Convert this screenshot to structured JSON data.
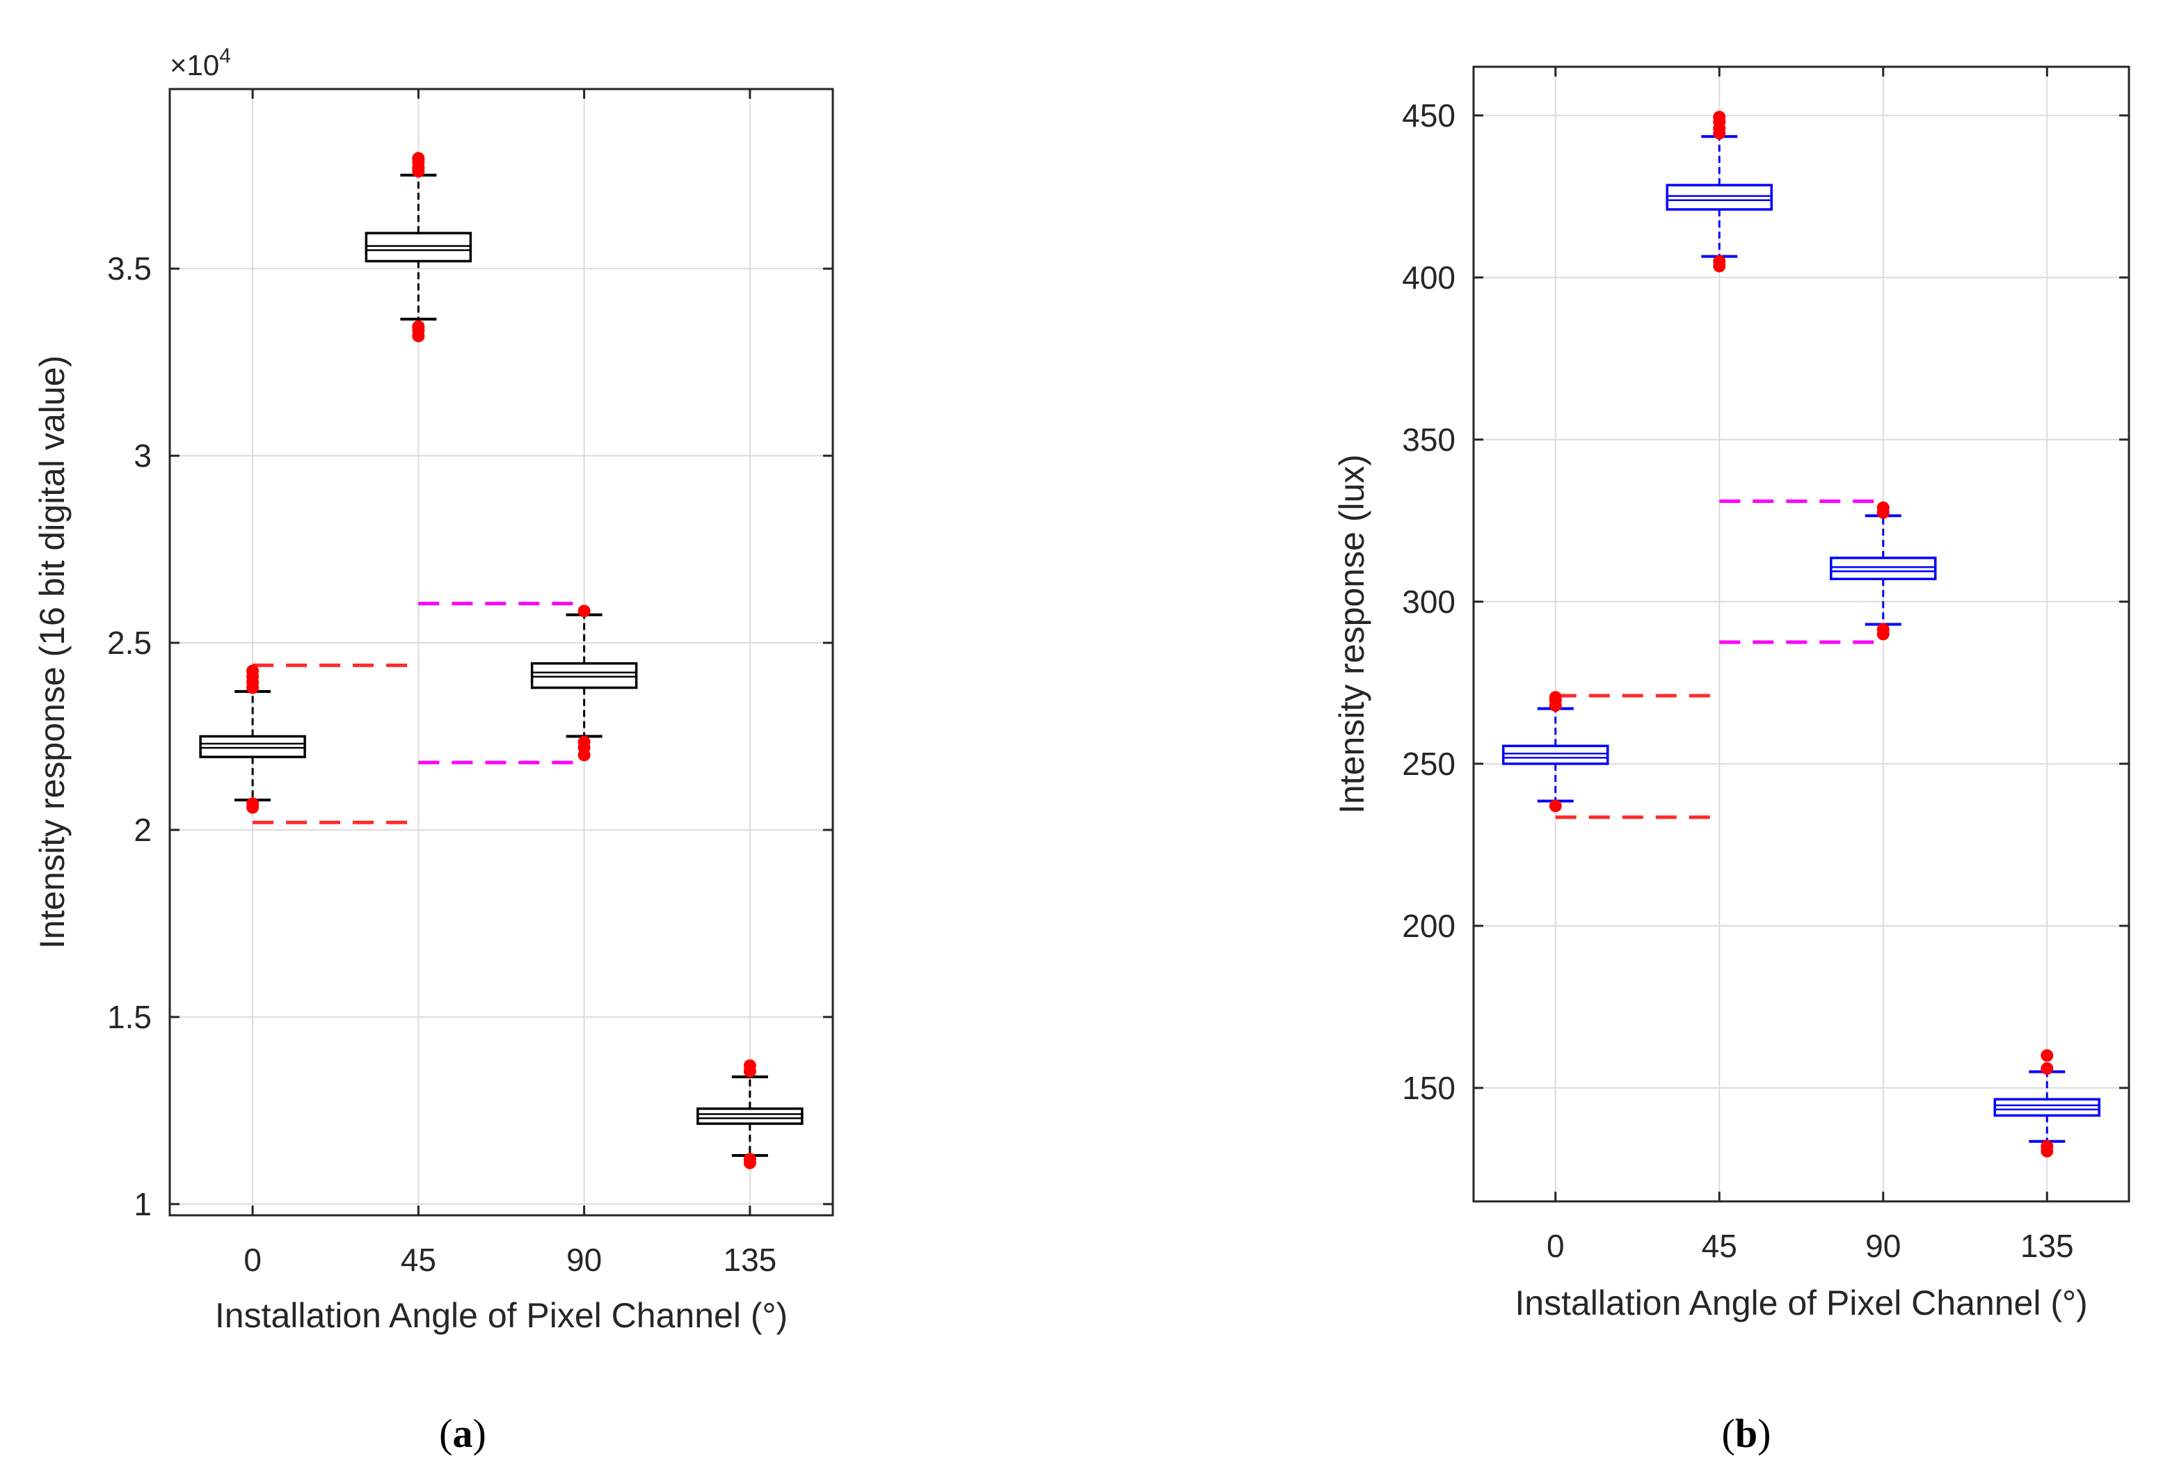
{
  "panels": [
    {
      "label": "(a)",
      "letter": "a"
    },
    {
      "label": "(b)",
      "letter": "b"
    }
  ],
  "chart_data": [
    {
      "type": "boxplot",
      "panel": "a",
      "xlabel": "Installation Angle of Pixel Channel (°)",
      "ylabel": "Intensity response (16 bit digital value)",
      "categories": [
        "0",
        "45",
        "90",
        "135"
      ],
      "ylim": [
        9700,
        39800
      ],
      "yticks": [
        10000,
        15000,
        20000,
        25000,
        30000,
        35000
      ],
      "ytick_labels": [
        "1",
        "1.5",
        "2",
        "2.5",
        "3",
        "3.5"
      ],
      "y_multiplier_base": "×10",
      "y_multiplier_exp": "4",
      "grid": true,
      "box_color": "#000000",
      "outlier_color": "#ff0000",
      "boxes": [
        {
          "category": "0",
          "q1": 21950,
          "median": 22250,
          "q3": 22500,
          "whisker_low": 20800,
          "whisker_high": 23700,
          "outliers": [
            20600,
            20700,
            23800,
            23950,
            24100,
            24250
          ]
        },
        {
          "category": "45",
          "q1": 35200,
          "median": 35550,
          "q3": 35950,
          "whisker_low": 33650,
          "whisker_high": 37500,
          "outliers": [
            33200,
            33350,
            33450,
            37600,
            37700,
            37850,
            37950
          ]
        },
        {
          "category": "90",
          "q1": 23800,
          "median": 24150,
          "q3": 24450,
          "whisker_low": 22500,
          "whisker_high": 25750,
          "outliers": [
            22000,
            22200,
            22350,
            25850
          ]
        },
        {
          "category": "135",
          "q1": 12150,
          "median": 12350,
          "q3": 12550,
          "whisker_low": 11300,
          "whisker_high": 13400,
          "outliers": [
            11100,
            11200,
            13550,
            13700
          ]
        }
      ],
      "reference_lines": [
        {
          "color": "#ff2a2a",
          "y": 24400,
          "x_from": 0,
          "x_to": 45
        },
        {
          "color": "#ff2a2a",
          "y": 20200,
          "x_from": 0,
          "x_to": 45
        },
        {
          "color": "#ff00ff",
          "y": 26050,
          "x_from": 45,
          "x_to": 90
        },
        {
          "color": "#ff00ff",
          "y": 21800,
          "x_from": 45,
          "x_to": 90
        }
      ]
    },
    {
      "type": "boxplot",
      "panel": "b",
      "xlabel": "Installation Angle of Pixel Channel (°)",
      "ylabel": "Intensity response (lux)",
      "categories": [
        "0",
        "45",
        "90",
        "135"
      ],
      "ylim": [
        115,
        465
      ],
      "yticks": [
        150,
        200,
        250,
        300,
        350,
        400,
        450
      ],
      "ytick_labels": [
        "150",
        "200",
        "250",
        "300",
        "350",
        "400",
        "450"
      ],
      "grid": true,
      "box_color": "#0000ff",
      "outlier_color": "#ff0000",
      "boxes": [
        {
          "category": "0",
          "q1": 250.0,
          "median": 252.5,
          "q3": 255.5,
          "whisker_low": 238.5,
          "whisker_high": 267.0,
          "outliers": [
            237.0,
            268.0,
            269.5,
            270.5
          ]
        },
        {
          "category": "45",
          "q1": 421.0,
          "median": 424.5,
          "q3": 428.5,
          "whisker_low": 406.5,
          "whisker_high": 443.5,
          "outliers": [
            403.5,
            405.0,
            444.5,
            446.0,
            448.0,
            449.5
          ]
        },
        {
          "category": "90",
          "q1": 307.0,
          "median": 310.0,
          "q3": 313.5,
          "whisker_low": 293.0,
          "whisker_high": 326.5,
          "outliers": [
            290.0,
            291.5,
            327.5,
            329.0
          ]
        },
        {
          "category": "135",
          "q1": 141.5,
          "median": 144.0,
          "q3": 146.5,
          "whisker_low": 133.5,
          "whisker_high": 155.0,
          "outliers": [
            130.5,
            132.0,
            156.0,
            160.0
          ]
        }
      ],
      "reference_lines": [
        {
          "color": "#ff2a2a",
          "y": 271.0,
          "x_from": 0,
          "x_to": 45
        },
        {
          "color": "#ff2a2a",
          "y": 233.5,
          "x_from": 0,
          "x_to": 45
        },
        {
          "color": "#ff00ff",
          "y": 331.0,
          "x_from": 45,
          "x_to": 90
        },
        {
          "color": "#ff00ff",
          "y": 287.5,
          "x_from": 45,
          "x_to": 90
        }
      ]
    }
  ]
}
